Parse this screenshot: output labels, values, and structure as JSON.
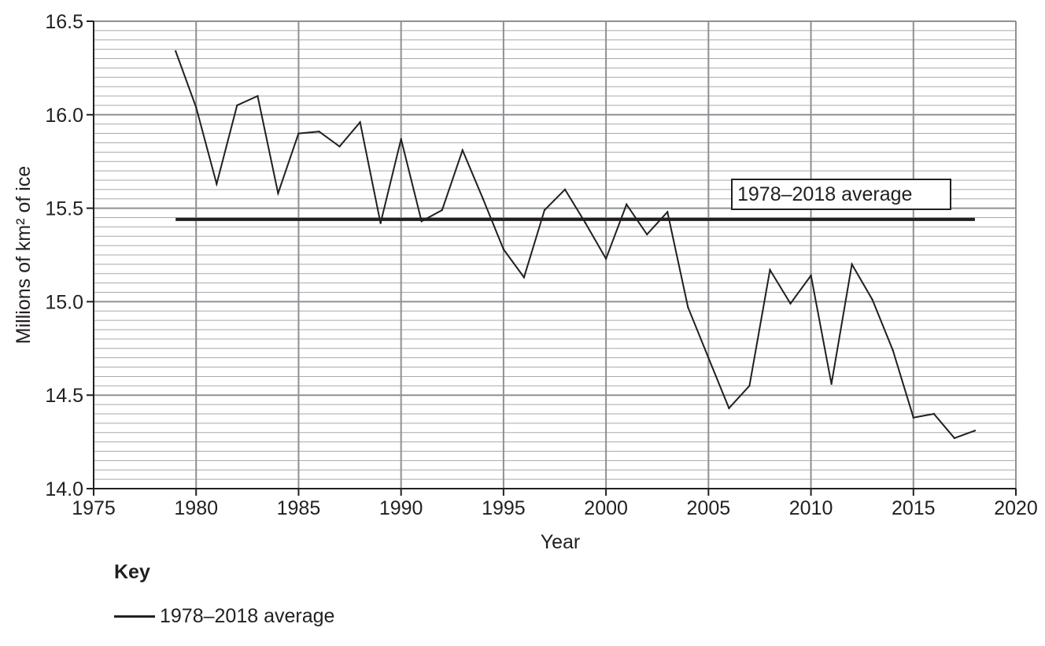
{
  "chart_data": {
    "type": "line",
    "title": "",
    "xlabel": "Year",
    "ylabel": "Millions of km² of ice",
    "xlim": [
      1975,
      2020
    ],
    "ylim": [
      14.0,
      16.5
    ],
    "x_ticks": [
      "1975",
      "1980",
      "1985",
      "1990",
      "1995",
      "2000",
      "2005",
      "2010",
      "2015",
      "2020"
    ],
    "y_ticks": [
      "14.0",
      "14.5",
      "15.0",
      "15.5",
      "16.0",
      "16.5"
    ],
    "grid": true,
    "series": [
      {
        "x": [
          1979,
          1980,
          1981,
          1982,
          1983,
          1984,
          1985,
          1986,
          1987,
          1988,
          1989,
          1990,
          1991,
          1992,
          1993,
          1994,
          1995,
          1996,
          1997,
          1998,
          1999,
          2000,
          2001,
          2002,
          2003,
          2004,
          2005,
          2006,
          2007,
          2008,
          2009,
          2010,
          2011,
          2012,
          2013,
          2014,
          2015,
          2016,
          2017,
          2018
        ],
        "y": [
          16.34,
          16.04,
          15.63,
          16.05,
          16.1,
          15.58,
          15.9,
          15.91,
          15.83,
          15.96,
          15.42,
          15.87,
          15.43,
          15.49,
          15.81,
          15.55,
          15.28,
          15.13,
          15.49,
          15.6,
          15.42,
          15.23,
          15.52,
          15.36,
          15.48,
          14.97,
          14.7,
          14.43,
          14.55,
          15.17,
          14.99,
          15.14,
          14.56,
          15.2,
          15.01,
          14.74,
          14.38,
          14.4,
          14.27,
          14.31
        ],
        "color": "#231f20"
      }
    ],
    "average": {
      "name": "1978–2018 average",
      "value": 15.44,
      "x": [
        1979,
        2018
      ]
    },
    "annotations": [
      {
        "text": "1978–2018 average"
      }
    ],
    "legend": {
      "title": "Key",
      "items": [
        {
          "label": "1978–2018 average"
        }
      ],
      "position": "bottom-left"
    }
  }
}
